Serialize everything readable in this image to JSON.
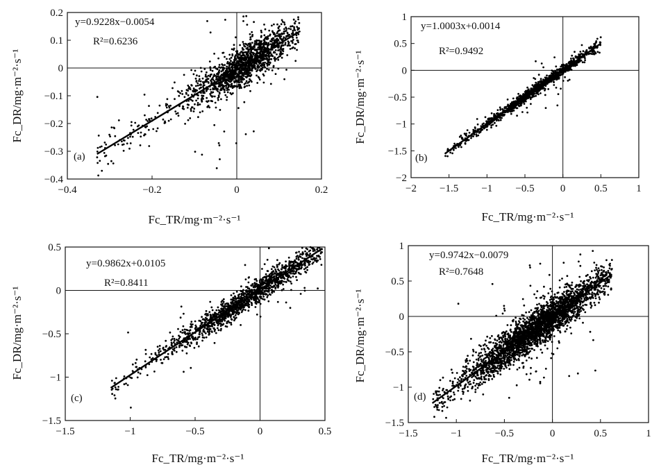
{
  "chart_data": [
    {
      "type": "scatter",
      "panel": "(a)",
      "xlabel": "Fc_TR/mg·m⁻²·s⁻¹",
      "ylabel": "Fc_DR/mg·m⁻²·s⁻¹",
      "xlim": [
        -0.4,
        0.2
      ],
      "ylim": [
        -0.4,
        0.2
      ],
      "xticks": [
        "−0.4",
        "−0.2",
        "0",
        "0.2"
      ],
      "yticks": [
        "0.2",
        "0.1",
        "0",
        "−0.1",
        "−0.2",
        "−0.3",
        "−0.4"
      ],
      "equation": "y=0.9228x−0.0054",
      "r2": "R²=0.6236",
      "fit": {
        "slope": 0.9228,
        "intercept": -0.0054,
        "x_range": [
          -0.33,
          0.15
        ]
      },
      "points": {
        "count": 1600,
        "x_center": 0.02,
        "x_spread": 0.06,
        "x_min": -0.33,
        "x_max": 0.15,
        "noise": 0.035
      }
    },
    {
      "type": "scatter",
      "panel": "(b)",
      "xlabel": "Fc_TR/mg·m⁻²·s⁻¹",
      "ylabel": "Fc_DR/mg·m⁻²·s⁻¹",
      "xlim": [
        -2,
        1
      ],
      "ylim": [
        -2,
        1
      ],
      "xticks": [
        "−2",
        "−1.5",
        "−1",
        "−0.5",
        "0",
        "0.5",
        "1"
      ],
      "yticks": [
        "1",
        "0.5",
        "0",
        "−0.5",
        "−1",
        "−1.5",
        "−2"
      ],
      "equation": "y=1.0003x+0.0014",
      "r2": "R²=0.9492",
      "fit": {
        "slope": 1.0003,
        "intercept": 0.0014,
        "x_range": [
          -1.55,
          0.5
        ]
      },
      "points": {
        "count": 1200,
        "x_center": -0.3,
        "x_spread": 0.45,
        "x_min": -1.55,
        "x_max": 0.5,
        "noise": 0.05
      }
    },
    {
      "type": "scatter",
      "panel": "(c)",
      "xlabel": "Fc_TR/mg·m⁻²·s⁻¹",
      "ylabel": "Fc_DR/mg·m⁻²·s⁻¹",
      "xlim": [
        -1.5,
        0.5
      ],
      "ylim": [
        -1.5,
        0.5
      ],
      "xticks": [
        "−1.5",
        "−1",
        "−0.5",
        "0",
        "0.5"
      ],
      "yticks": [
        "0.5",
        "0",
        "−0.5",
        "−1",
        "−1.5"
      ],
      "equation": "y=0.9862x+0.0105",
      "r2": "R²=0.8411",
      "fit": {
        "slope": 0.9862,
        "intercept": 0.0105,
        "x_range": [
          -1.15,
          0.48
        ]
      },
      "points": {
        "count": 1500,
        "x_center": -0.1,
        "x_spread": 0.3,
        "x_min": -1.15,
        "x_max": 0.48,
        "noise": 0.07
      }
    },
    {
      "type": "scatter",
      "panel": "(d)",
      "xlabel": "Fc_TR/mg·m⁻²·s⁻¹",
      "ylabel": "Fc_DR/mg·m⁻²·s⁻¹",
      "xlim": [
        -1.5,
        1
      ],
      "ylim": [
        -1.5,
        1
      ],
      "xticks": [
        "−1.5",
        "−1",
        "−0.5",
        "0",
        "0.5",
        "1"
      ],
      "yticks": [
        "1",
        "0.5",
        "0",
        "−0.5",
        "−1",
        "−1.5"
      ],
      "equation": "y=0.9742x−0.0079",
      "r2": "R²=0.7648",
      "fit": {
        "slope": 0.9742,
        "intercept": -0.0079,
        "x_range": [
          -1.25,
          0.62
        ]
      },
      "points": {
        "count": 3000,
        "x_center": -0.15,
        "x_spread": 0.35,
        "x_min": -1.25,
        "x_max": 0.62,
        "noise": 0.13
      }
    }
  ]
}
